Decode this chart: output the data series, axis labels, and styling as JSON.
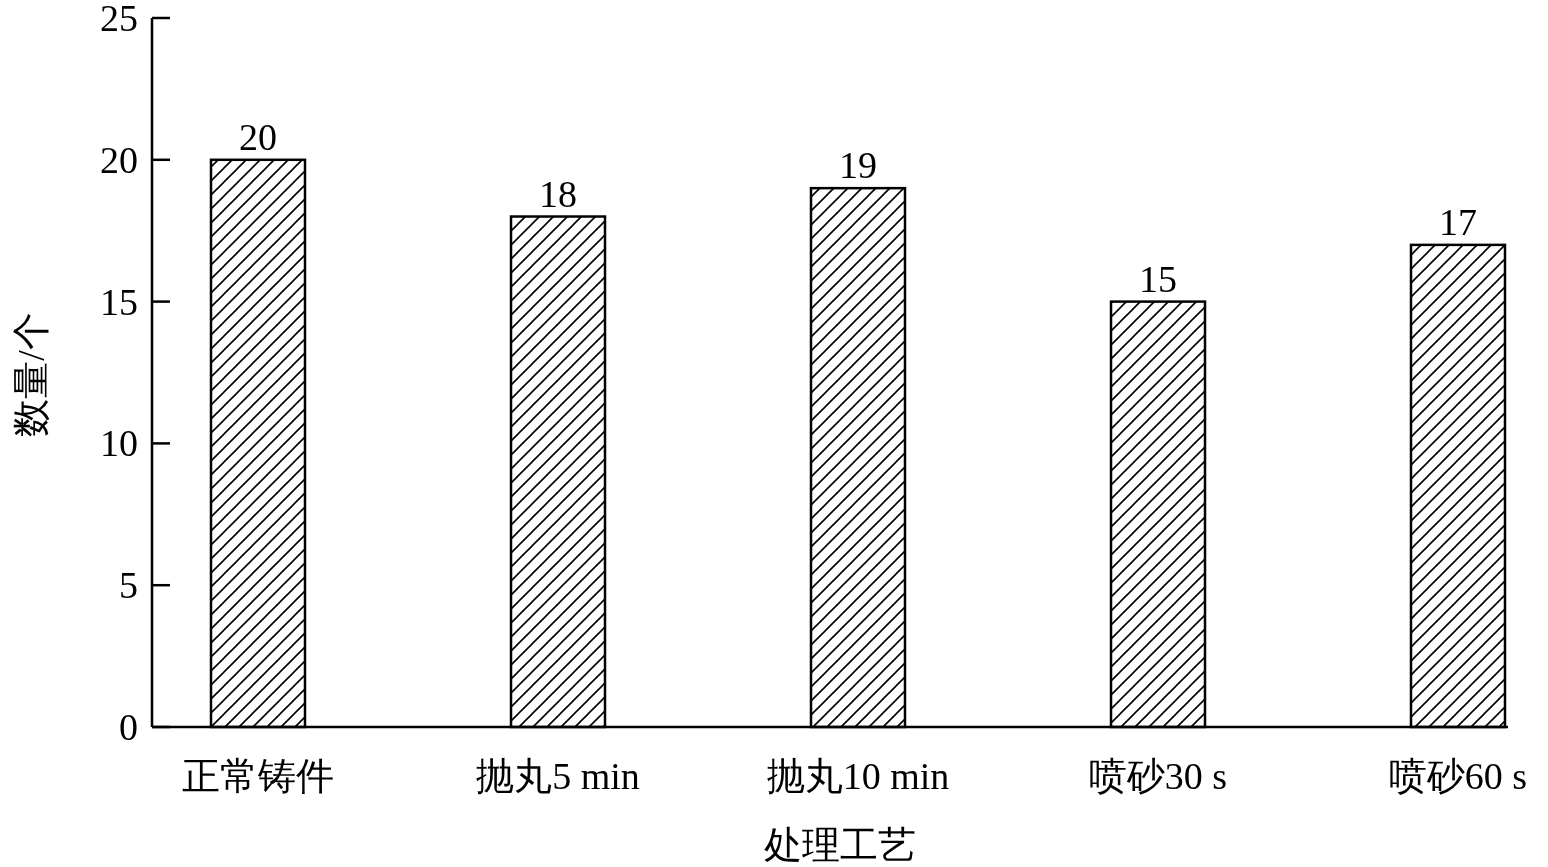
{
  "chart_data": {
    "type": "bar",
    "xlabel": "处理工艺",
    "ylabel": "数量/个",
    "categories": [
      "正常铸件",
      "抛丸5 min",
      "抛丸10 min",
      "喷砂30 s",
      "喷砂60 s"
    ],
    "values": [
      20,
      18,
      19,
      15,
      17
    ],
    "color": "#000000",
    "ylim": [
      0,
      25
    ],
    "yticks": [
      0,
      5,
      10,
      15,
      20,
      25
    ],
    "data_labels": true
  }
}
